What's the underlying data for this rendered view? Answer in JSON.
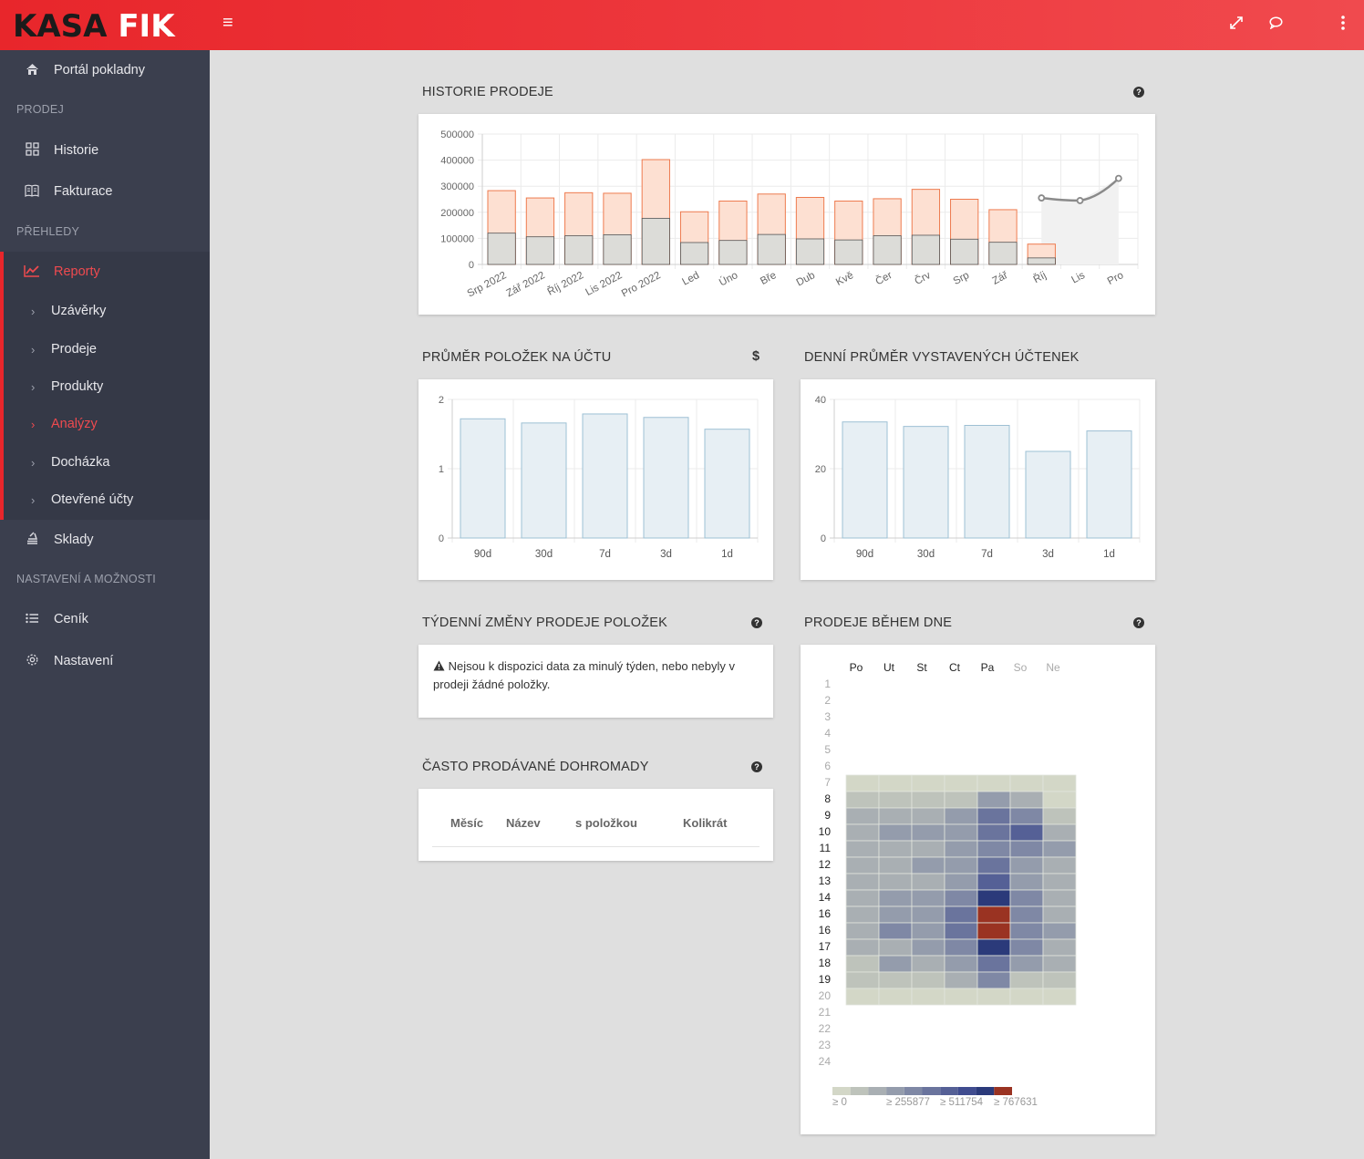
{
  "brand": {
    "part1": "KASA",
    "part2": "FIK"
  },
  "topbar": {
    "menu_icon": "≡",
    "expand_icon": "⤢",
    "chat_icon": "💬",
    "more_icon": "⋮"
  },
  "sidebar": {
    "portal": "Portál pokladny",
    "sect_prodej": "PRODEJ",
    "historie": "Historie",
    "fakturace": "Fakturace",
    "sect_prehledy": "PŘEHLEDY",
    "reporty": "Reporty",
    "sub": [
      "Uzávěrky",
      "Prodeje",
      "Produkty",
      "Analýzy",
      "Docházka",
      "Otevřené účty"
    ],
    "sklady": "Sklady",
    "sect_nastaveni": "NASTAVENÍ A MOŽNOSTI",
    "cenik": "Ceník",
    "nastaveni": "Nastavení"
  },
  "history": {
    "title": "HISTORIE PRODEJE",
    "chart_data": {
      "type": "bar",
      "categories": [
        "Srp 2022",
        "Zář 2022",
        "Říj 2022",
        "Lis 2022",
        "Pro 2022",
        "Led",
        "Úno",
        "Bře",
        "Dub",
        "Kvě",
        "Čer",
        "Črv",
        "Srp",
        "Zář",
        "Říj",
        "Lis",
        "Pro"
      ],
      "series": [
        {
          "values": [
            283000,
            255000,
            275000,
            273000,
            402000,
            202000,
            243000,
            270000,
            257000,
            243000,
            252000,
            288000,
            250000,
            210000,
            78000,
            null,
            null
          ]
        },
        {
          "values": [
            120000,
            106000,
            110000,
            114000,
            177000,
            84000,
            92000,
            115000,
            98000,
            94000,
            110000,
            112000,
            97000,
            85000,
            25000,
            null,
            null
          ]
        },
        {
          "values": [
            null,
            null,
            null,
            null,
            null,
            null,
            null,
            null,
            null,
            null,
            null,
            null,
            null,
            null,
            255000,
            245000,
            330000
          ]
        }
      ],
      "yticks": [
        "500000",
        "400000",
        "300000",
        "200000",
        "100000",
        "0"
      ],
      "ylim": [
        0,
        500000
      ]
    }
  },
  "avg_items": {
    "title": "PRŮMĚR POLOŽEK NA ÚČTU",
    "icon": "$",
    "chart_data": {
      "type": "bar",
      "categories": [
        "90d",
        "30d",
        "7d",
        "3d",
        "1d"
      ],
      "values": [
        1.72,
        1.66,
        1.79,
        1.74,
        1.57
      ],
      "yticks": [
        "2",
        "1",
        "0"
      ],
      "ylim": [
        0,
        2
      ]
    }
  },
  "daily_receipts": {
    "title": "DENNÍ PRŮMĚR VYSTAVENÝCH ÚČTENEK",
    "chart_data": {
      "type": "bar",
      "categories": [
        "90d",
        "30d",
        "7d",
        "3d",
        "1d"
      ],
      "values": [
        33.5,
        32.2,
        32.5,
        25,
        30.9
      ],
      "yticks": [
        "40",
        "20",
        "0"
      ],
      "ylim": [
        0,
        40
      ]
    }
  },
  "weekly": {
    "title": "TÝDENNÍ ZMĚNY PRODEJE POLOŽEK",
    "message": "Nejsou k dispozici data za minulý týden, nebo nebyly v prodeji žádné položky."
  },
  "together": {
    "title": "ČASTO PRODÁVANÉ DOHROMADY",
    "columns": [
      "Měsíc",
      "Název",
      "s položkou",
      "Kolikrát"
    ]
  },
  "heatmap": {
    "title": "PRODEJE BĚHEM DNE",
    "chart_data": {
      "type": "heatmap",
      "days": [
        "Po",
        "Ut",
        "St",
        "Ct",
        "Pa",
        "So",
        "Ne"
      ],
      "hours": [
        "1",
        "2",
        "3",
        "4",
        "5",
        "6",
        "7",
        "8",
        "9",
        "10",
        "11",
        "12",
        "13",
        "14",
        "16",
        "16",
        "17",
        "18",
        "19",
        "20",
        "21",
        "22",
        "23",
        "24"
      ],
      "start_row": 6,
      "levels": [
        [
          0,
          0,
          0,
          0,
          0,
          0,
          0
        ],
        [
          1,
          1,
          1,
          1,
          3,
          2,
          0
        ],
        [
          2,
          2,
          2,
          3,
          5,
          4,
          1
        ],
        [
          2,
          3,
          3,
          3,
          5,
          6,
          2
        ],
        [
          2,
          2,
          2,
          3,
          4,
          4,
          3
        ],
        [
          2,
          2,
          3,
          3,
          5,
          3,
          2
        ],
        [
          2,
          2,
          2,
          3,
          6,
          3,
          2
        ],
        [
          2,
          3,
          3,
          4,
          8,
          4,
          2
        ],
        [
          2,
          3,
          3,
          5,
          9,
          4,
          2
        ],
        [
          2,
          4,
          3,
          5,
          9,
          4,
          3
        ],
        [
          2,
          2,
          3,
          4,
          8,
          4,
          2
        ],
        [
          1,
          3,
          2,
          3,
          5,
          3,
          2
        ],
        [
          1,
          1,
          1,
          2,
          4,
          1,
          1
        ],
        [
          0,
          0,
          0,
          0,
          0,
          0,
          0
        ]
      ],
      "palette": [
        "#d3d7c7",
        "#bec3bb",
        "#a9afb3",
        "#949cac",
        "#7f88a5",
        "#6a749d",
        "#556096",
        "#404c8f",
        "#2b3a7a",
        "#9a3322"
      ],
      "legend": [
        "≥ 0",
        "≥ 255877",
        "≥ 511754",
        "≥ 767631"
      ]
    }
  }
}
